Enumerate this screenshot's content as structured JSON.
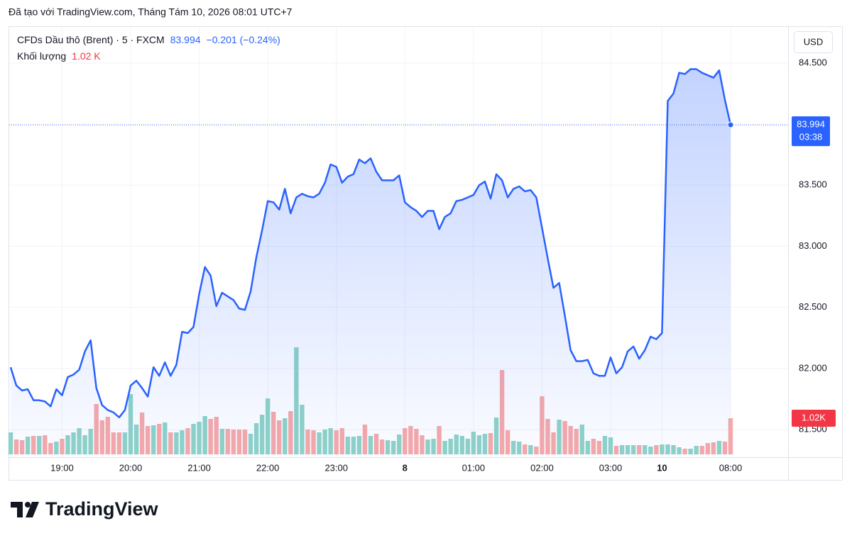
{
  "caption": "Đã tạo với TradingView.com, Tháng Tám 10, 2026 08:01 UTC+7",
  "legend": {
    "symbol": "CFDs Dầu thô (Brent) · 5 · FXCM",
    "last": "83.994",
    "change": "−0.201 (−0.24%)",
    "volume_title": "Khối lượng",
    "volume": "1.02 K"
  },
  "currency": "USD",
  "brand": "TradingView",
  "chart_data": {
    "type": "area",
    "categories": [
      null,
      null,
      null,
      null,
      null,
      null,
      null,
      null,
      null,
      "19:00",
      null,
      null,
      null,
      null,
      null,
      null,
      null,
      null,
      null,
      null,
      null,
      "20:00",
      null,
      null,
      null,
      null,
      null,
      null,
      null,
      null,
      null,
      null,
      null,
      "21:00",
      null,
      null,
      null,
      null,
      null,
      null,
      null,
      null,
      null,
      null,
      null,
      "22:00",
      null,
      null,
      null,
      null,
      null,
      null,
      null,
      null,
      null,
      null,
      null,
      "23:00",
      null,
      null,
      null,
      null,
      null,
      null,
      null,
      null,
      null,
      null,
      null,
      "8",
      null,
      null,
      null,
      null,
      null,
      null,
      null,
      null,
      null,
      null,
      null,
      "01:00",
      null,
      null,
      null,
      null,
      null,
      null,
      null,
      null,
      null,
      null,
      null,
      "02:00",
      null,
      null,
      null,
      null,
      null,
      null,
      null,
      null,
      null,
      null,
      null,
      "03:00",
      null,
      null,
      null,
      null,
      null,
      null,
      null,
      null,
      "10",
      null,
      null,
      null,
      null,
      null,
      null,
      null,
      null,
      null,
      null,
      null,
      "08:00"
    ],
    "series": [
      {
        "type": "area",
        "color": "#2962ff",
        "values": [
          82.01,
          81.86,
          81.82,
          81.83,
          81.74,
          81.74,
          81.73,
          81.69,
          81.83,
          81.78,
          81.93,
          81.95,
          81.99,
          82.14,
          82.23,
          81.84,
          81.7,
          81.66,
          81.64,
          81.6,
          81.66,
          81.86,
          81.9,
          81.84,
          81.77,
          82.01,
          81.94,
          82.05,
          81.94,
          82.03,
          82.3,
          82.29,
          82.34,
          82.61,
          82.83,
          82.76,
          82.51,
          82.62,
          82.59,
          82.56,
          82.49,
          82.48,
          82.63,
          82.91,
          83.13,
          83.37,
          83.36,
          83.3,
          83.47,
          83.27,
          83.4,
          83.43,
          83.41,
          83.4,
          83.43,
          83.52,
          83.67,
          83.65,
          83.52,
          83.57,
          83.59,
          83.71,
          83.68,
          83.72,
          83.61,
          83.54,
          83.54,
          83.54,
          83.58,
          83.36,
          83.32,
          83.29,
          83.24,
          83.29,
          83.29,
          83.14,
          83.24,
          83.27,
          83.37,
          83.38,
          83.4,
          83.42,
          83.5,
          83.53,
          83.39,
          83.59,
          83.54,
          83.4,
          83.47,
          83.49,
          83.45,
          83.46,
          83.4,
          83.15,
          82.9,
          82.66,
          82.7,
          82.43,
          82.15,
          82.06,
          82.06,
          82.07,
          81.96,
          81.94,
          81.94,
          82.09,
          81.96,
          82.01,
          82.14,
          82.18,
          82.08,
          82.15,
          82.26,
          82.24,
          82.29,
          84.19,
          84.25,
          84.42,
          84.41,
          84.45,
          84.45,
          84.42,
          84.4,
          84.38,
          84.44,
          84.2,
          83.994
        ]
      },
      {
        "type": "bar",
        "axis": "y2",
        "up_color": "#8fd3c8",
        "down_color": "#f7a9a9",
        "values": [
          620,
          420,
          400,
          500,
          520,
          520,
          540,
          320,
          360,
          440,
          540,
          620,
          740,
          540,
          720,
          1420,
          960,
          1060,
          620,
          620,
          620,
          1700,
          840,
          1180,
          800,
          820,
          860,
          900,
          620,
          620,
          680,
          740,
          860,
          920,
          1080,
          1000,
          1060,
          720,
          720,
          700,
          700,
          700,
          580,
          880,
          1120,
          1580,
          1200,
          960,
          1020,
          1220,
          3020,
          1400,
          700,
          680,
          620,
          700,
          740,
          680,
          740,
          500,
          500,
          520,
          840,
          520,
          580,
          420,
          400,
          380,
          560,
          740,
          800,
          720,
          540,
          420,
          440,
          800,
          380,
          440,
          560,
          520,
          440,
          640,
          540,
          580,
          600,
          1040,
          2380,
          680,
          380,
          360,
          280,
          260,
          220,
          1640,
          1000,
          620,
          980,
          940,
          800,
          720,
          840,
          380,
          440,
          380,
          520,
          480,
          240,
          260,
          260,
          260,
          260,
          260,
          220,
          260,
          280,
          280,
          260,
          200,
          160,
          160,
          240,
          240,
          320,
          340,
          380,
          360,
          1020
        ]
      }
    ],
    "ylim": [
      81.274,
      84.801
    ],
    "yticks": [
      {
        "value": 81.5,
        "label": "81.500"
      },
      {
        "value": 82,
        "label": "82.000"
      },
      {
        "value": 82.5,
        "label": "82.500"
      },
      {
        "value": 83,
        "label": "83.000"
      },
      {
        "value": 83.5,
        "label": "83.500"
      },
      {
        "value": 84.5,
        "label": "84.500"
      }
    ],
    "y2lim": [
      0,
      4000
    ],
    "grid": true,
    "countdown": "03:38",
    "volume_badge": "1.02K",
    "volume_badge_color": "#f23645"
  }
}
